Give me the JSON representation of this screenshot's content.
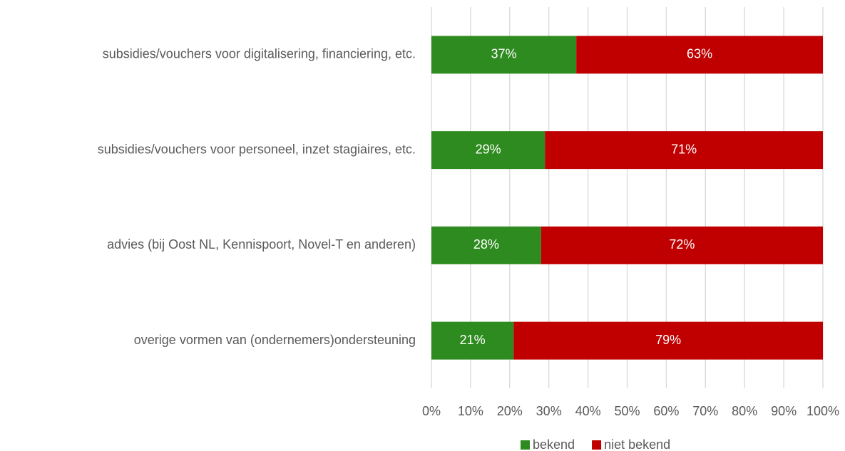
{
  "chart_data": {
    "type": "stacked-bar-horizontal",
    "categories": [
      "subsidies/vouchers voor digitalisering, financiering, etc.",
      "subsidies/vouchers voor personeel, inzet stagiaires, etc.",
      "advies (bij Oost NL, Kennispoort, Novel-T en anderen)",
      "overige vormen van (ondernemers)ondersteuning"
    ],
    "series": [
      {
        "name": "bekend",
        "color": "#2e8b1f",
        "values": [
          37,
          29,
          28,
          21
        ],
        "value_labels": [
          "37%",
          "29%",
          "28%",
          "21%"
        ]
      },
      {
        "name": "niet bekend",
        "color": "#c00000",
        "values": [
          63,
          71,
          72,
          79
        ],
        "value_labels": [
          "63%",
          "71%",
          "72%",
          "79%"
        ]
      }
    ],
    "xlim": [
      0,
      100
    ],
    "xticks": [
      {
        "value": 0,
        "label": "0%"
      },
      {
        "value": 10,
        "label": "10%"
      },
      {
        "value": 20,
        "label": "20%"
      },
      {
        "value": 30,
        "label": "30%"
      },
      {
        "value": 40,
        "label": "40%"
      },
      {
        "value": 50,
        "label": "50%"
      },
      {
        "value": 60,
        "label": "60%"
      },
      {
        "value": 70,
        "label": "70%"
      },
      {
        "value": 80,
        "label": "80%"
      },
      {
        "value": 90,
        "label": "90%"
      },
      {
        "value": 100,
        "label": "100%"
      }
    ],
    "grid": true,
    "legend": "bottom"
  }
}
